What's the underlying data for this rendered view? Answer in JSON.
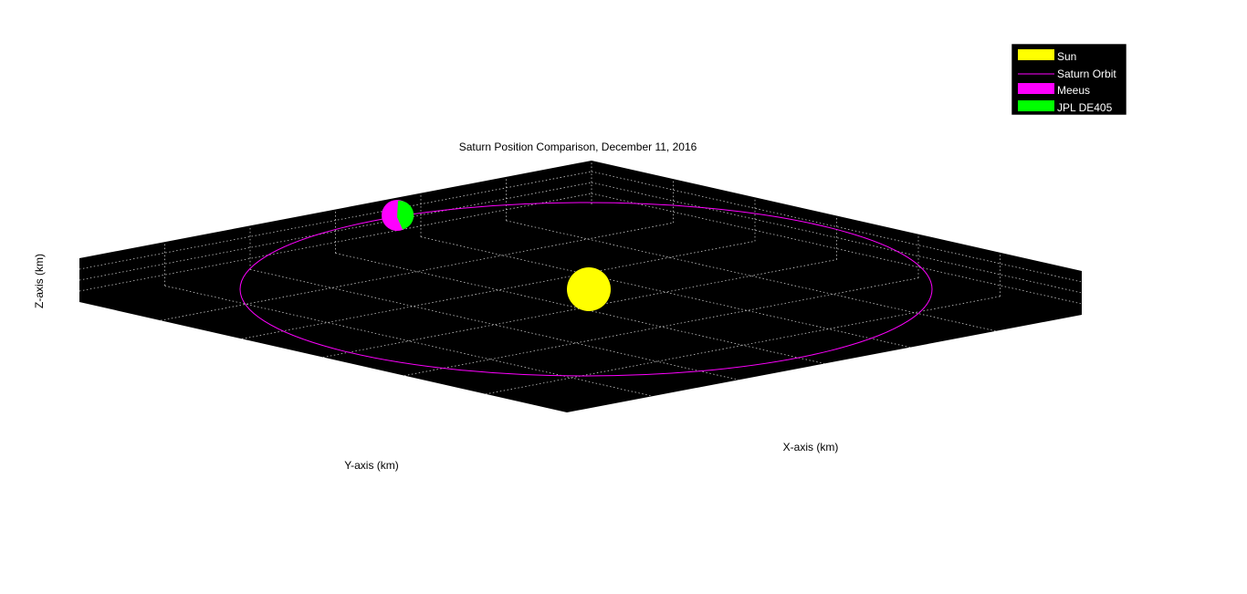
{
  "chart_data": {
    "type": "scatter",
    "projection": "3d",
    "title": "Saturn Position Comparison, December 11, 2016",
    "xlabel": "X-axis (km)",
    "ylabel": "Y-axis (km)",
    "zlabel": "Z-axis (km)",
    "grid": true,
    "background": "#000000",
    "grid_color": "#c8c8c8",
    "legend_location": "top-right",
    "series": [
      {
        "name": "Sun",
        "kind": "sphere",
        "color": "#ffff00"
      },
      {
        "name": "Saturn Orbit",
        "kind": "line",
        "color": "#ff00ff"
      },
      {
        "name": "Meeus",
        "kind": "sphere",
        "color": "#ff00ff"
      },
      {
        "name": "JPL DE405",
        "kind": "sphere",
        "color": "#00ff00"
      }
    ]
  }
}
